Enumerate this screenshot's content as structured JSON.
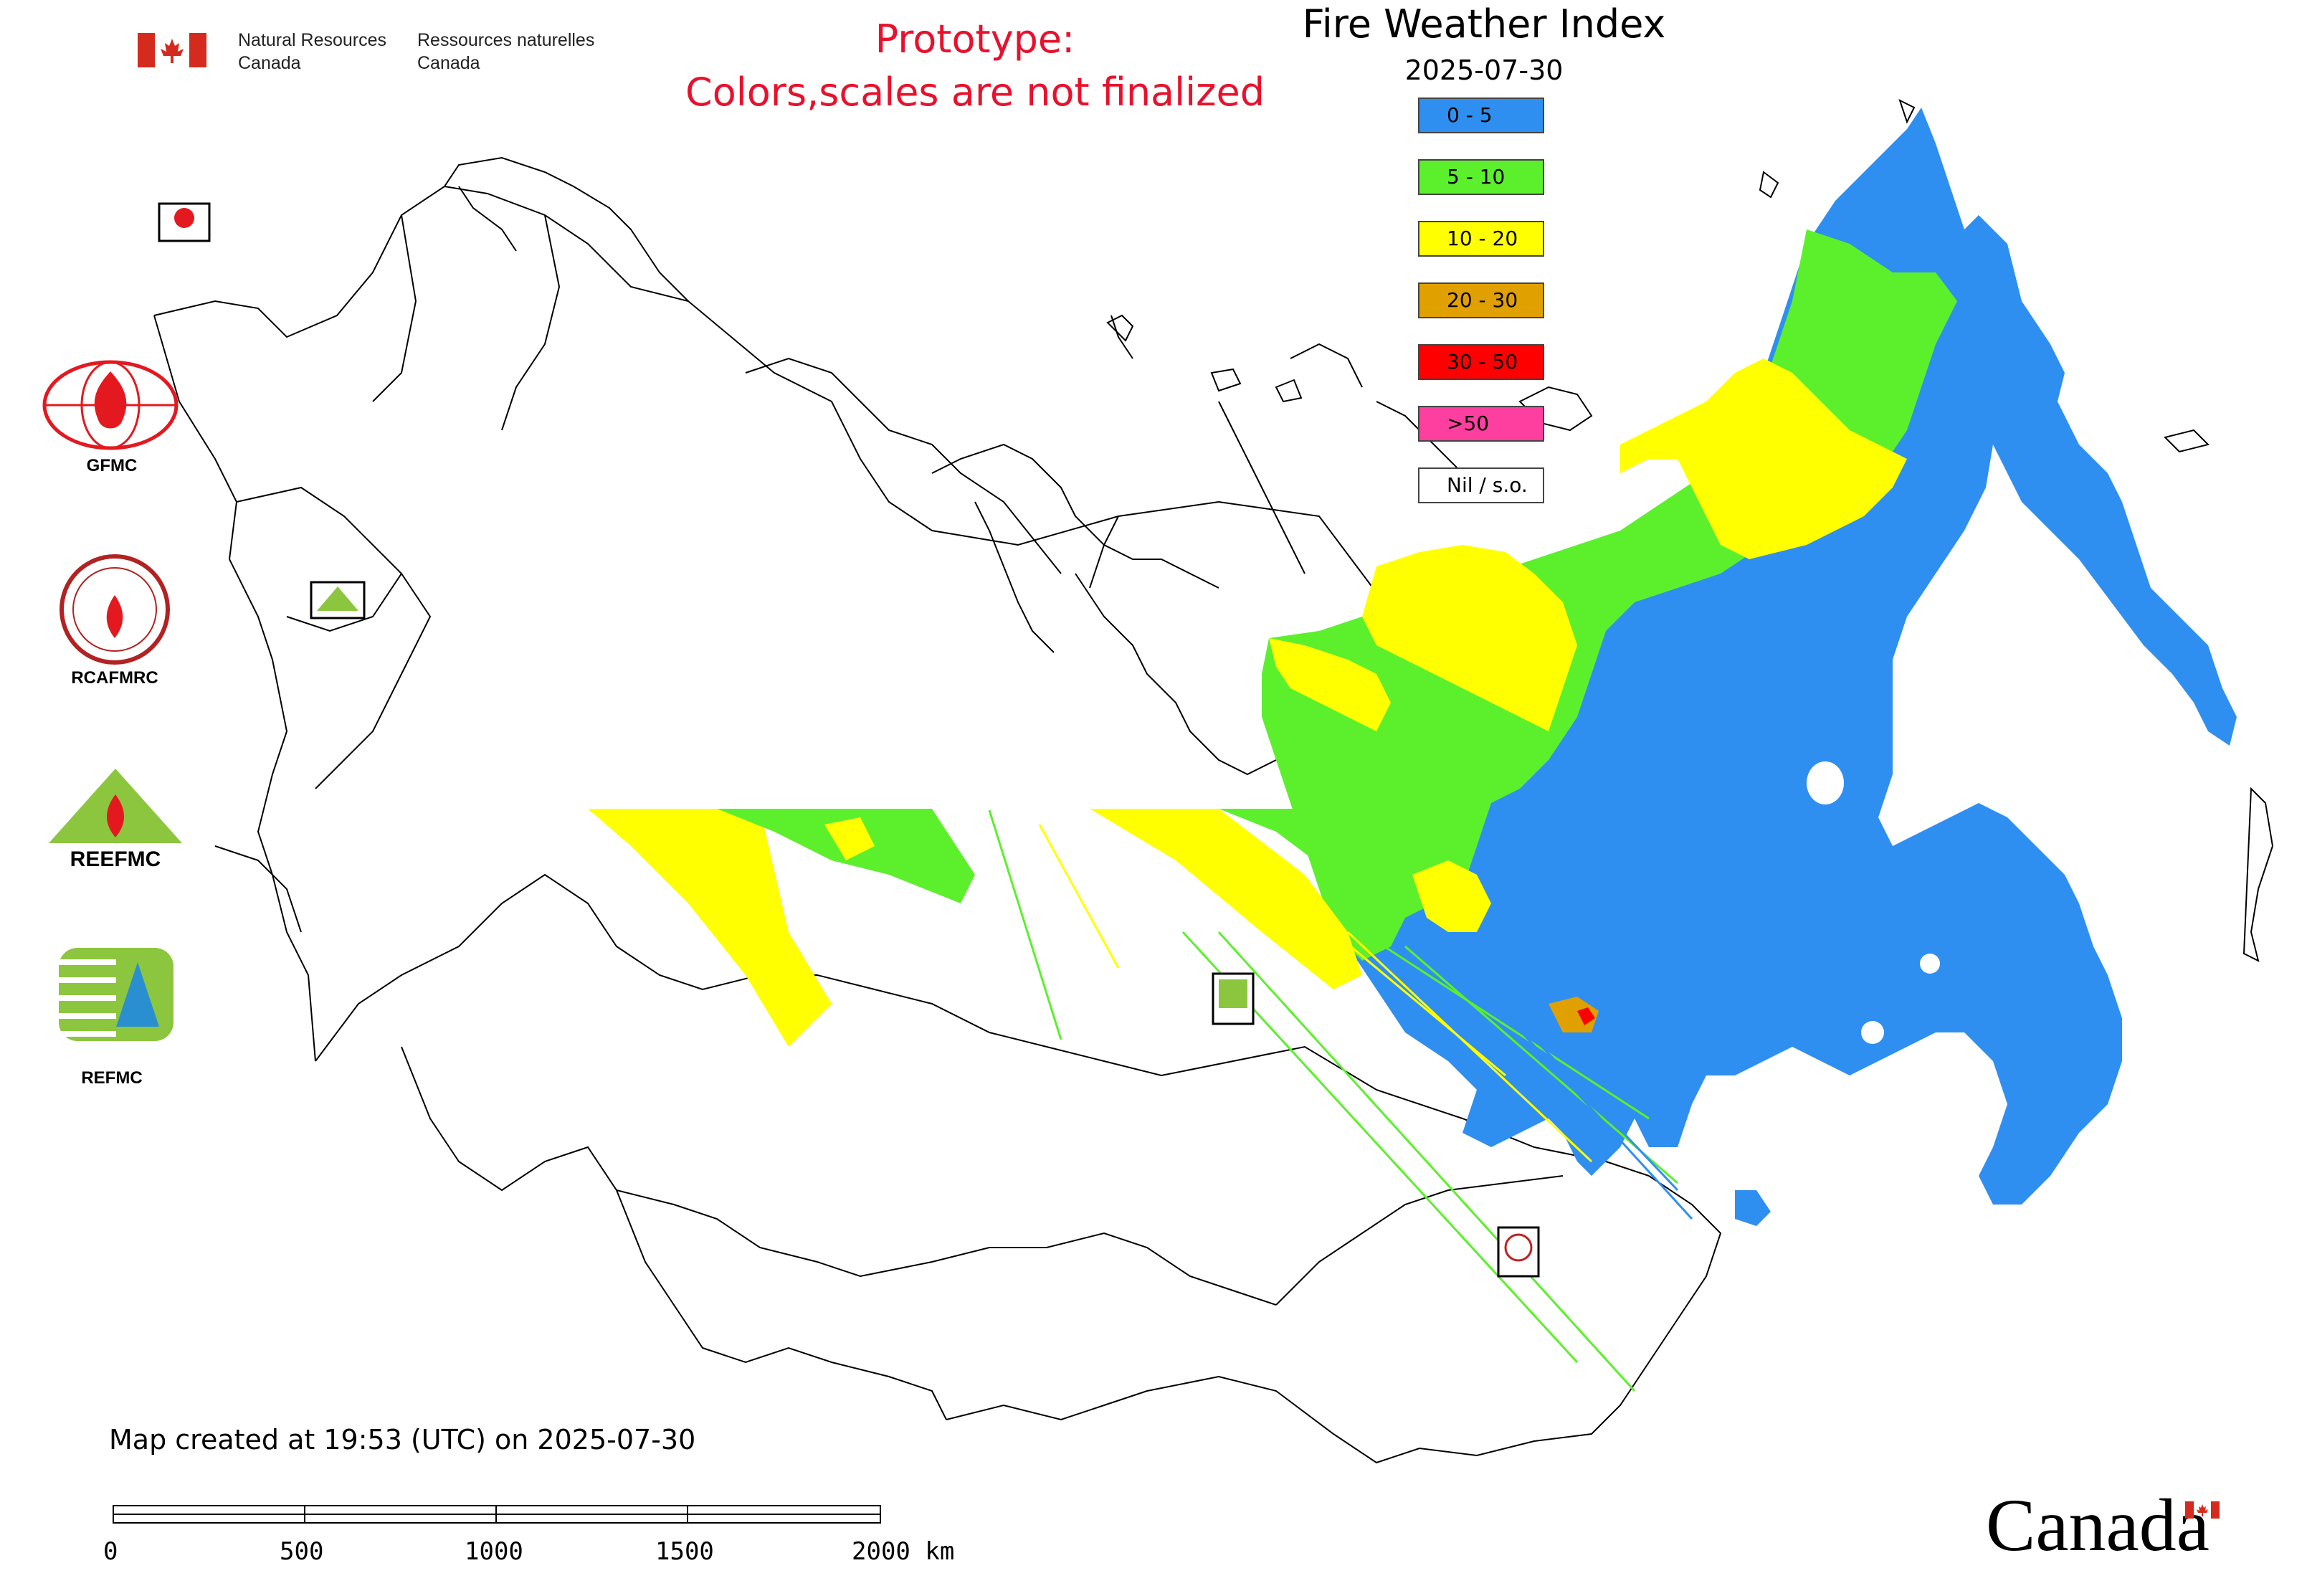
{
  "header": {
    "agency_en_1": "Natural Resources",
    "agency_en_2": "Canada",
    "agency_fr_1": "Ressources naturelles",
    "agency_fr_2": "Canada",
    "prototype_line1": "Prototype:",
    "prototype_line2": "Colors,scales are not finalized",
    "title": "Fire Weather Index",
    "date": "2025-07-30"
  },
  "legend": [
    {
      "label": "0 - 5",
      "color": "#2f8ff0"
    },
    {
      "label": "5 - 10",
      "color": "#5cf02c"
    },
    {
      "label": "10 - 20",
      "color": "#ffff00"
    },
    {
      "label": "20 - 30",
      "color": "#e0a000"
    },
    {
      "label": "30 - 50",
      "color": "#ff0000"
    },
    {
      "label": ">50",
      "color": "#ff3fa0"
    },
    {
      "label": "Nil / s.o.",
      "color": "#ffffff"
    }
  ],
  "logos": {
    "gfmc": "GFMC",
    "rcafmrc": "RCAFMRC",
    "reefmc": "REEFMC",
    "refmc": "REFMC"
  },
  "footer": {
    "created": "Map created at 19:53 (UTC) on 2025-07-30",
    "scale_labels": [
      "0",
      "500",
      "1000",
      "1500",
      "2000 km"
    ],
    "wordmark": "Canada"
  },
  "colors": {
    "prototype_text": "#e8112d",
    "flag_red": "#d52b1e"
  },
  "icons": [
    "canada-flag-icon",
    "gfmc-logo-icon",
    "rcafmrc-logo-icon",
    "reefmc-logo-icon",
    "refmc-logo-icon",
    "canada-flag-small-icon"
  ]
}
